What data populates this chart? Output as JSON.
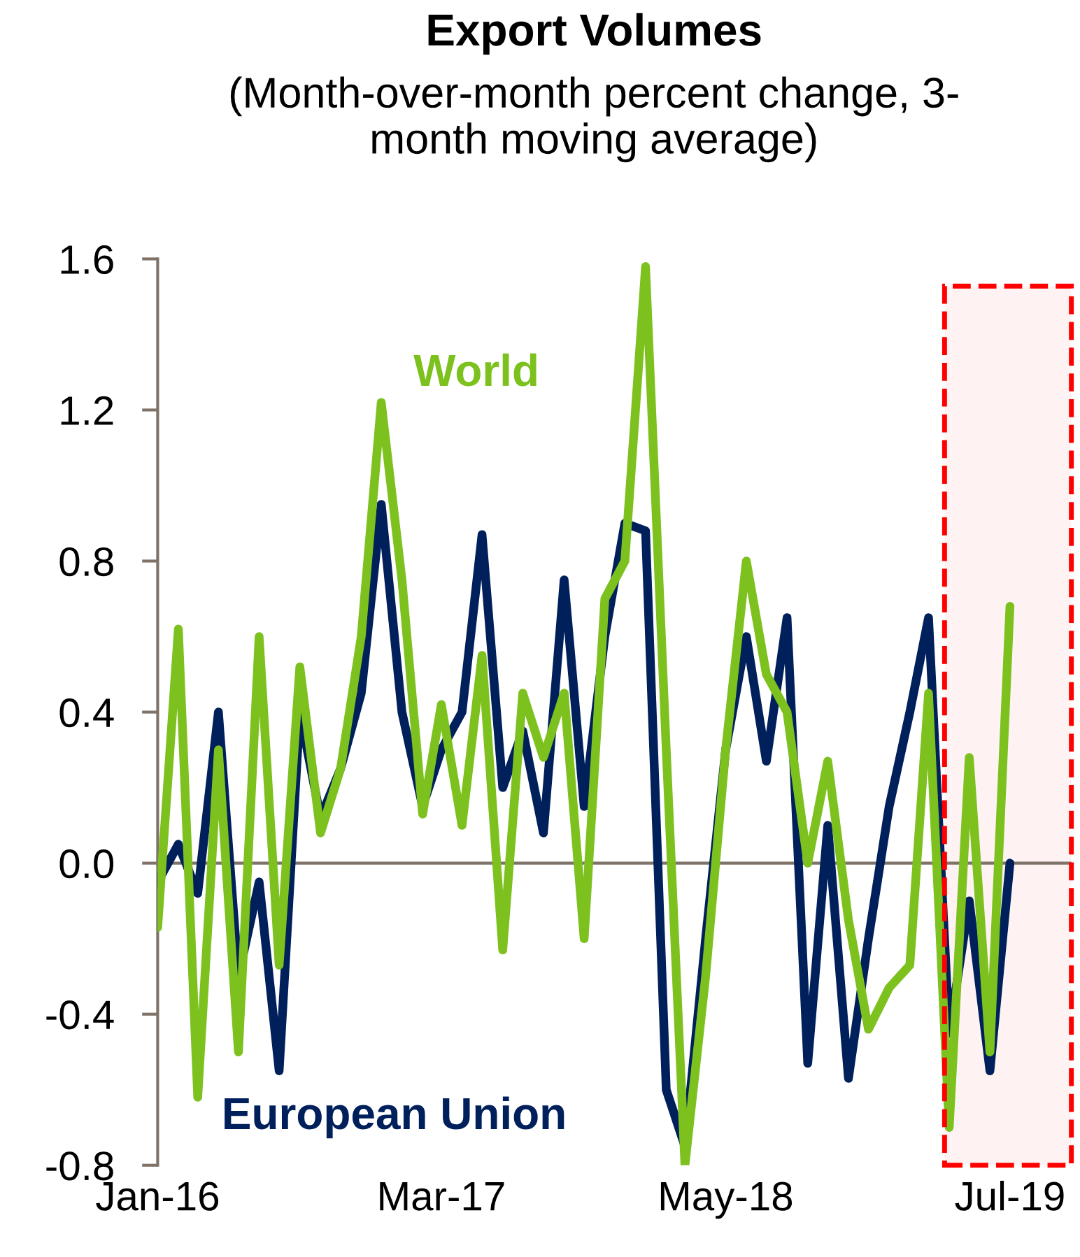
{
  "chart_data": {
    "type": "line",
    "title": "Export Volumes",
    "subtitle": "(Month-over-month percent change, 3-\nmonth moving average)",
    "x": [
      "2016-01",
      "2016-02",
      "2016-03",
      "2016-04",
      "2016-05",
      "2016-06",
      "2016-07",
      "2016-08",
      "2016-09",
      "2016-10",
      "2016-11",
      "2016-12",
      "2017-01",
      "2017-02",
      "2017-03",
      "2017-04",
      "2017-05",
      "2017-06",
      "2017-07",
      "2017-08",
      "2017-09",
      "2017-10",
      "2017-11",
      "2017-12",
      "2018-01",
      "2018-02",
      "2018-03",
      "2018-04",
      "2018-05",
      "2018-06",
      "2018-07",
      "2018-08",
      "2018-09",
      "2018-10",
      "2018-11",
      "2018-12",
      "2019-01",
      "2019-02",
      "2019-03",
      "2019-04",
      "2019-05",
      "2019-06",
      "2019-07"
    ],
    "series": [
      {
        "name": "World",
        "color": "#7dc11f",
        "values": [
          -0.17,
          0.62,
          -0.62,
          0.3,
          -0.5,
          0.6,
          -0.27,
          0.52,
          0.08,
          0.25,
          0.6,
          1.22,
          0.75,
          0.13,
          0.42,
          0.1,
          0.55,
          -0.23,
          0.45,
          0.28,
          0.45,
          -0.2,
          0.7,
          0.8,
          1.58,
          0.3,
          -0.8,
          -0.3,
          0.3,
          0.8,
          0.5,
          0.4,
          0.0,
          0.27,
          -0.15,
          -0.44,
          -0.33,
          -0.27,
          0.45,
          -0.7,
          0.28,
          -0.5,
          0.68
        ]
      },
      {
        "name": "European Union",
        "color": "#00205b",
        "values": [
          -0.05,
          0.05,
          -0.08,
          0.4,
          -0.3,
          -0.05,
          -0.55,
          0.4,
          0.12,
          0.25,
          0.45,
          0.95,
          0.4,
          0.15,
          0.3,
          0.4,
          0.87,
          0.2,
          0.35,
          0.08,
          0.75,
          0.15,
          0.6,
          0.9,
          0.88,
          -0.6,
          -0.75,
          -0.2,
          0.3,
          0.6,
          0.27,
          0.65,
          -0.53,
          0.1,
          -0.57,
          -0.2,
          0.15,
          0.4,
          0.65,
          -0.45,
          -0.1,
          -0.55,
          0.0
        ]
      }
    ],
    "xlim": [
      "2016-01",
      "2019-10"
    ],
    "xticks": [
      {
        "value": "2016-01",
        "label": "Jan-16"
      },
      {
        "value": "2017-03",
        "label": "Mar-17"
      },
      {
        "value": "2018-05",
        "label": "May-18"
      },
      {
        "value": "2019-07",
        "label": "Jul-19"
      }
    ],
    "ylim": [
      -0.8,
      1.6
    ],
    "yticks": [
      {
        "value": 1.6,
        "label": "1.6"
      },
      {
        "value": 1.2,
        "label": "1.2"
      },
      {
        "value": 0.8,
        "label": "0.8"
      },
      {
        "value": 0.4,
        "label": "0.4"
      },
      {
        "value": 0.0,
        "label": "0.0"
      },
      {
        "value": -0.4,
        "label": "-0.4"
      },
      {
        "value": -0.8,
        "label": "-0.8"
      }
    ],
    "ref_lines": [
      {
        "axis": "y",
        "value": 0,
        "color": "#7f7369"
      }
    ],
    "bands": [
      {
        "axis": "x",
        "from": "2019-03-25",
        "to": "2019-10-01",
        "color": "#ff0000"
      }
    ],
    "line_style": "solid",
    "marker": "none",
    "grid": false,
    "legend": false
  }
}
